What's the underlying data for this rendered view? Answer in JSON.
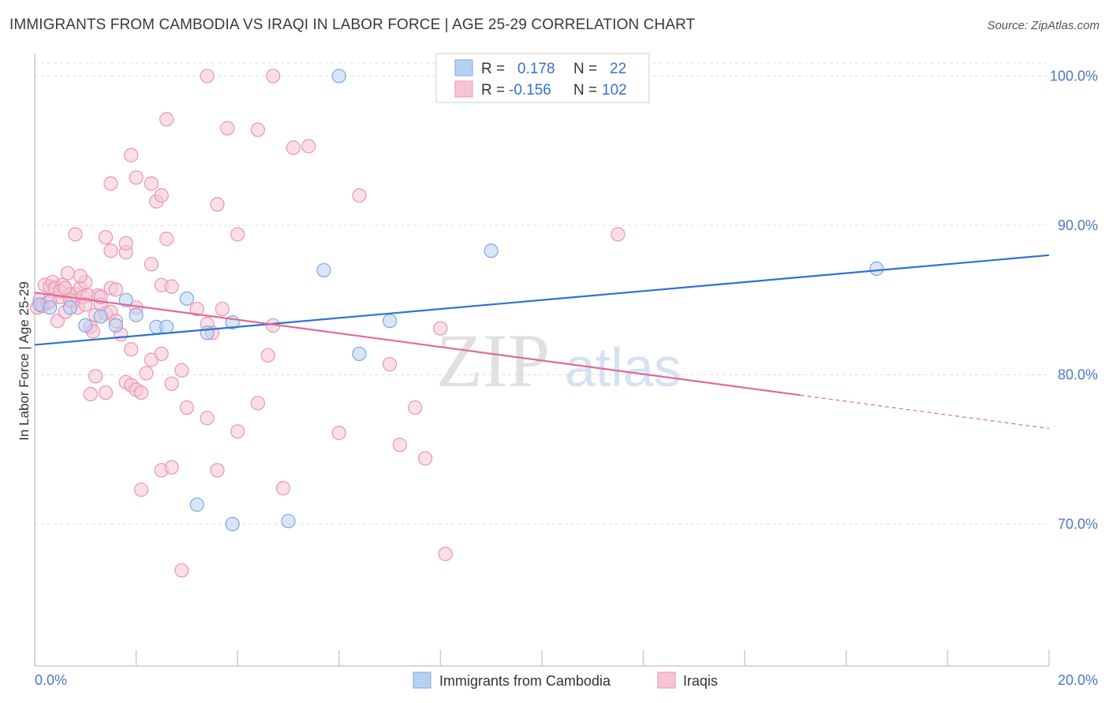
{
  "header": {
    "title": "IMMIGRANTS FROM CAMBODIA VS IRAQI IN LABOR FORCE | AGE 25-29 CORRELATION CHART",
    "source": "Source: ZipAtlas.com"
  },
  "watermark": {
    "zip": "ZIP",
    "atlas": "atlas"
  },
  "colors": {
    "blue_fill": "#b8d1f3",
    "blue_stroke": "#7ea7e0",
    "blue_line": "#2f72d0",
    "pink_fill": "#f7c4d6",
    "pink_stroke": "#e994b2",
    "pink_line": "#e06a98",
    "axis_label": "#4a78c8",
    "grid": "#dddddd"
  },
  "legend": {
    "rows": [
      {
        "r_label": "R =",
        "r_value": "0.178",
        "n_label": "N =",
        "n_value": "22"
      },
      {
        "r_label": "R =",
        "r_value": "-0.156",
        "n_label": "N =",
        "n_value": "102"
      }
    ]
  },
  "bottom_legend": {
    "series_a": "Immigrants from Cambodia",
    "series_b": "Iraqis"
  },
  "chart_data": {
    "type": "scatter",
    "title": "IMMIGRANTS FROM CAMBODIA VS IRAQI IN LABOR FORCE | AGE 25-29 CORRELATION CHART",
    "xlabel": "",
    "ylabel": "In Labor Force | Age 25-29",
    "xlim": [
      0,
      20
    ],
    "ylim": [
      60.5,
      101.5
    ],
    "x_tick_labels": [
      "0.0%",
      "20.0%"
    ],
    "y_ticks": [
      70,
      80,
      90,
      100
    ],
    "y_tick_labels": [
      "70.0%",
      "80.0%",
      "90.0%",
      "100.0%"
    ],
    "grid": true,
    "series": [
      {
        "name": "Immigrants from Cambodia",
        "r": 0.178,
        "n": 22,
        "trend": {
          "x0": 0,
          "y0": 82.0,
          "x1": 20,
          "y1": 88.0,
          "solid_until": 20
        },
        "points": [
          [
            0.1,
            84.7
          ],
          [
            0.3,
            84.5
          ],
          [
            0.7,
            84.5
          ],
          [
            1.0,
            83.3
          ],
          [
            1.3,
            83.9
          ],
          [
            1.6,
            83.3
          ],
          [
            1.8,
            85.0
          ],
          [
            2.0,
            84.0
          ],
          [
            2.4,
            83.2
          ],
          [
            2.6,
            83.2
          ],
          [
            3.0,
            85.1
          ],
          [
            3.4,
            82.8
          ],
          [
            3.9,
            83.5
          ],
          [
            6.0,
            100.0
          ],
          [
            5.7,
            87.0
          ],
          [
            6.4,
            81.4
          ],
          [
            7.0,
            83.6
          ],
          [
            9.0,
            88.3
          ],
          [
            16.6,
            87.1
          ],
          [
            3.2,
            71.3
          ],
          [
            3.9,
            70.0
          ],
          [
            5.0,
            70.2
          ]
        ]
      },
      {
        "name": "Iraqis",
        "r": -0.156,
        "n": 102,
        "trend": {
          "x0": 0,
          "y0": 85.5,
          "x1": 20,
          "y1": 76.4,
          "solid_until": 15.1
        },
        "points": [
          [
            0.05,
            84.5
          ],
          [
            0.1,
            85.0
          ],
          [
            0.15,
            84.6
          ],
          [
            0.2,
            86.0
          ],
          [
            0.25,
            84.8
          ],
          [
            0.3,
            85.9
          ],
          [
            0.35,
            86.2
          ],
          [
            0.4,
            85.8
          ],
          [
            0.45,
            83.6
          ],
          [
            0.5,
            85.2
          ],
          [
            0.55,
            86.0
          ],
          [
            0.6,
            84.2
          ],
          [
            0.65,
            86.8
          ],
          [
            0.7,
            85.4
          ],
          [
            0.75,
            84.9
          ],
          [
            0.8,
            85.4
          ],
          [
            0.85,
            84.5
          ],
          [
            0.9,
            85.8
          ],
          [
            0.95,
            85.2
          ],
          [
            1.0,
            86.2
          ],
          [
            1.05,
            85.3
          ],
          [
            1.1,
            83.2
          ],
          [
            1.15,
            82.9
          ],
          [
            1.2,
            84.0
          ],
          [
            1.25,
            85.3
          ],
          [
            1.3,
            84.7
          ],
          [
            1.4,
            84.1
          ],
          [
            1.5,
            84.2
          ],
          [
            1.6,
            83.6
          ],
          [
            1.5,
            85.8
          ],
          [
            1.7,
            82.7
          ],
          [
            1.8,
            79.5
          ],
          [
            1.9,
            79.3
          ],
          [
            2.0,
            79.0
          ],
          [
            2.1,
            78.8
          ],
          [
            2.2,
            80.1
          ],
          [
            2.3,
            81.0
          ],
          [
            2.5,
            81.4
          ],
          [
            2.7,
            79.4
          ],
          [
            2.9,
            80.3
          ],
          [
            3.0,
            77.8
          ],
          [
            3.2,
            84.4
          ],
          [
            3.4,
            83.4
          ],
          [
            3.5,
            82.8
          ],
          [
            3.7,
            84.4
          ],
          [
            4.0,
            89.4
          ],
          [
            4.4,
            78.1
          ],
          [
            4.6,
            81.3
          ],
          [
            4.7,
            83.3
          ],
          [
            0.8,
            89.4
          ],
          [
            1.4,
            89.2
          ],
          [
            1.5,
            88.3
          ],
          [
            1.8,
            88.2
          ],
          [
            1.8,
            88.8
          ],
          [
            2.3,
            87.4
          ],
          [
            2.6,
            89.1
          ],
          [
            1.9,
            81.7
          ],
          [
            1.2,
            79.9
          ],
          [
            1.1,
            78.7
          ],
          [
            1.4,
            78.8
          ],
          [
            2.0,
            84.5
          ],
          [
            2.5,
            86.0
          ],
          [
            2.7,
            85.9
          ],
          [
            1.5,
            92.8
          ],
          [
            1.9,
            94.7
          ],
          [
            2.0,
            93.2
          ],
          [
            2.3,
            92.8
          ],
          [
            2.4,
            91.6
          ],
          [
            2.5,
            92.0
          ],
          [
            2.6,
            97.1
          ],
          [
            3.6,
            91.4
          ],
          [
            3.8,
            96.5
          ],
          [
            4.4,
            96.4
          ],
          [
            5.1,
            95.2
          ],
          [
            5.4,
            95.3
          ],
          [
            6.4,
            92.0
          ],
          [
            3.4,
            77.1
          ],
          [
            3.6,
            73.6
          ],
          [
            4.0,
            76.2
          ],
          [
            2.5,
            73.6
          ],
          [
            2.7,
            73.8
          ],
          [
            2.1,
            72.3
          ],
          [
            4.9,
            72.4
          ],
          [
            6.0,
            76.1
          ],
          [
            7.2,
            75.3
          ],
          [
            7.5,
            77.8
          ],
          [
            7.7,
            74.4
          ],
          [
            8.0,
            83.1
          ],
          [
            7.0,
            80.7
          ],
          [
            8.1,
            68.0
          ],
          [
            11.5,
            89.4
          ],
          [
            2.9,
            66.9
          ],
          [
            3.4,
            100.0
          ],
          [
            4.7,
            100.0
          ],
          [
            1.6,
            85.7
          ],
          [
            1.3,
            85.2
          ],
          [
            0.9,
            86.6
          ],
          [
            1.0,
            84.7
          ],
          [
            0.5,
            85.6
          ],
          [
            0.6,
            85.8
          ],
          [
            0.7,
            85.0
          ],
          [
            0.3,
            84.9
          ]
        ]
      }
    ]
  }
}
